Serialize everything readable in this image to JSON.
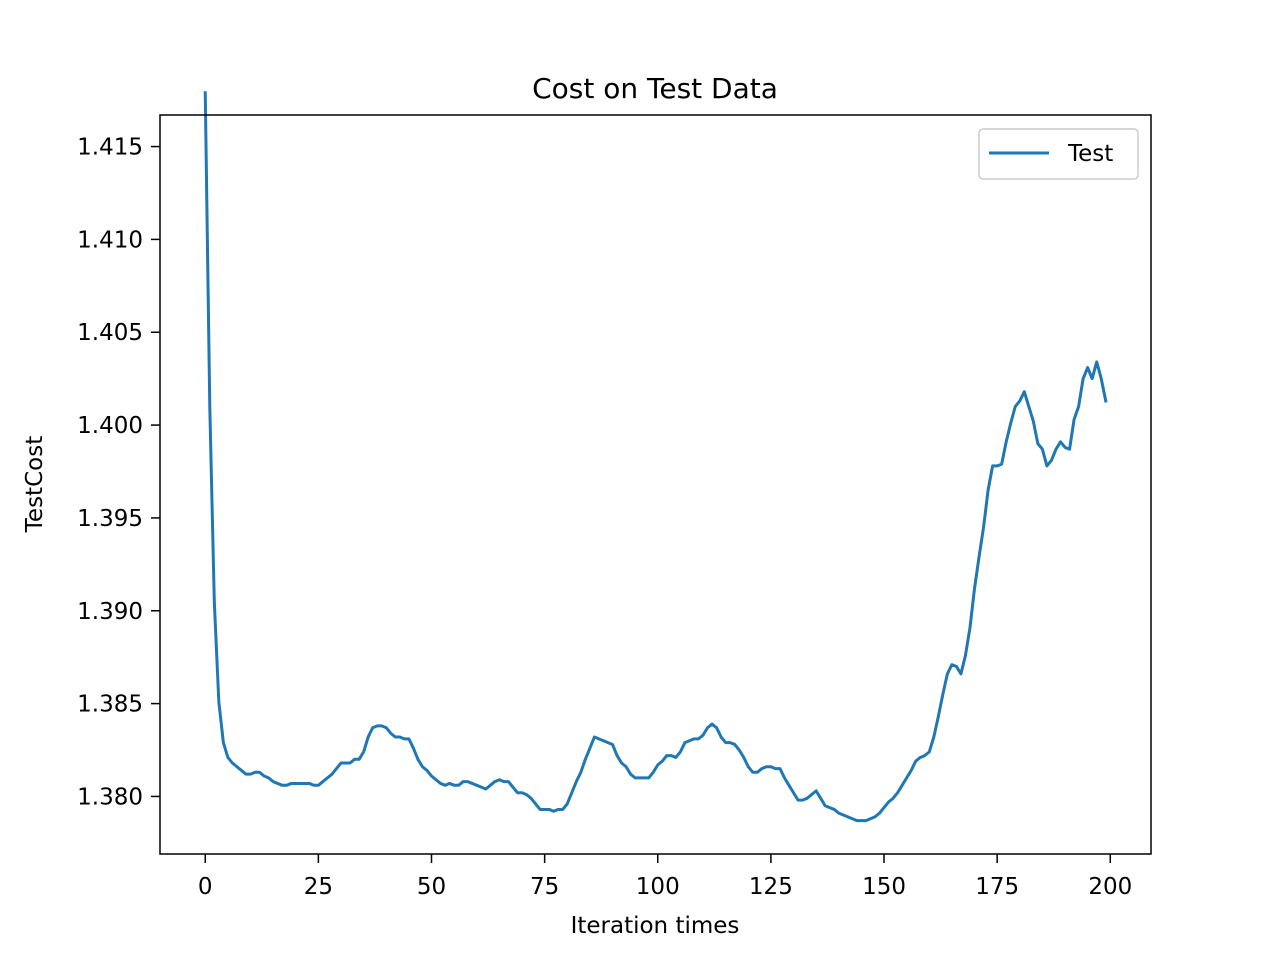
{
  "chart_data": {
    "type": "line",
    "title": "Cost on Test Data",
    "xlabel": "Iteration times",
    "ylabel": "TestCost",
    "xlim": [
      -10,
      209
    ],
    "ylim": [
      1.3769,
      1.4167
    ],
    "xticks": [
      0,
      25,
      50,
      75,
      100,
      125,
      150,
      175,
      200
    ],
    "xtick_labels": [
      "0",
      "25",
      "50",
      "75",
      "100",
      "125",
      "150",
      "175",
      "200"
    ],
    "yticks": [
      1.38,
      1.385,
      1.39,
      1.395,
      1.4,
      1.405,
      1.41,
      1.415
    ],
    "ytick_labels": [
      "1.380",
      "1.385",
      "1.390",
      "1.395",
      "1.400",
      "1.405",
      "1.410",
      "1.415"
    ],
    "grid": false,
    "legend_position": "top-right",
    "colors": {
      "series": "#1f77b4",
      "axes": "#000000",
      "background": "#ffffff"
    },
    "series": [
      {
        "name": "Test",
        "x": [
          0,
          1,
          2,
          3,
          4,
          5,
          6,
          7,
          8,
          9,
          10,
          11,
          12,
          13,
          14,
          15,
          16,
          17,
          18,
          19,
          20,
          21,
          22,
          23,
          24,
          25,
          26,
          27,
          28,
          29,
          30,
          31,
          32,
          33,
          34,
          35,
          36,
          37,
          38,
          39,
          40,
          41,
          42,
          43,
          44,
          45,
          46,
          47,
          48,
          49,
          50,
          51,
          52,
          53,
          54,
          55,
          56,
          57,
          58,
          59,
          60,
          61,
          62,
          63,
          64,
          65,
          66,
          67,
          68,
          69,
          70,
          71,
          72,
          73,
          74,
          75,
          76,
          77,
          78,
          79,
          80,
          81,
          82,
          83,
          84,
          85,
          86,
          87,
          88,
          89,
          90,
          91,
          92,
          93,
          94,
          95,
          96,
          97,
          98,
          99,
          100,
          101,
          102,
          103,
          104,
          105,
          106,
          107,
          108,
          109,
          110,
          111,
          112,
          113,
          114,
          115,
          116,
          117,
          118,
          119,
          120,
          121,
          122,
          123,
          124,
          125,
          126,
          127,
          128,
          129,
          130,
          131,
          132,
          133,
          134,
          135,
          136,
          137,
          138,
          139,
          140,
          141,
          142,
          143,
          144,
          145,
          146,
          147,
          148,
          149,
          150,
          151,
          152,
          153,
          154,
          155,
          156,
          157,
          158,
          159,
          160,
          161,
          162,
          163,
          164,
          165,
          166,
          167,
          168,
          169,
          170,
          171,
          172,
          173,
          174,
          175,
          176,
          177,
          178,
          179,
          180,
          181,
          182,
          183,
          184,
          185,
          186,
          187,
          188,
          189,
          190,
          191,
          192,
          193,
          194,
          195,
          196,
          197,
          198,
          199
        ],
        "y": [
          1.4179,
          1.401,
          1.3905,
          1.3851,
          1.3829,
          1.3821,
          1.3818,
          1.3816,
          1.3814,
          1.3812,
          1.3812,
          1.3813,
          1.3813,
          1.3811,
          1.381,
          1.3808,
          1.3807,
          1.3806,
          1.3806,
          1.3807,
          1.3807,
          1.3807,
          1.3807,
          1.3807,
          1.3806,
          1.3806,
          1.3808,
          1.381,
          1.3812,
          1.3815,
          1.3818,
          1.3818,
          1.3818,
          1.382,
          1.382,
          1.3824,
          1.3832,
          1.3837,
          1.3838,
          1.3838,
          1.3837,
          1.3834,
          1.3832,
          1.3832,
          1.3831,
          1.3831,
          1.3826,
          1.382,
          1.3816,
          1.3814,
          1.3811,
          1.3809,
          1.3807,
          1.3806,
          1.3807,
          1.3806,
          1.3806,
          1.3808,
          1.3808,
          1.3807,
          1.3806,
          1.3805,
          1.3804,
          1.3806,
          1.3808,
          1.3809,
          1.3808,
          1.3808,
          1.3805,
          1.3802,
          1.3802,
          1.3801,
          1.3799,
          1.3796,
          1.3793,
          1.3793,
          1.3793,
          1.3792,
          1.3793,
          1.3793,
          1.3796,
          1.3802,
          1.3808,
          1.3813,
          1.382,
          1.3826,
          1.3832,
          1.3831,
          1.383,
          1.3829,
          1.3828,
          1.3822,
          1.3818,
          1.3816,
          1.3812,
          1.381,
          1.381,
          1.381,
          1.381,
          1.3813,
          1.3817,
          1.3819,
          1.3822,
          1.3822,
          1.3821,
          1.3824,
          1.3829,
          1.383,
          1.3831,
          1.3831,
          1.3833,
          1.3837,
          1.3839,
          1.3837,
          1.3832,
          1.3829,
          1.3829,
          1.3828,
          1.3825,
          1.3821,
          1.3816,
          1.3813,
          1.3813,
          1.3815,
          1.3816,
          1.3816,
          1.3815,
          1.3815,
          1.381,
          1.3806,
          1.3802,
          1.3798,
          1.3798,
          1.3799,
          1.3801,
          1.3803,
          1.3799,
          1.3795,
          1.3794,
          1.3793,
          1.3791,
          1.379,
          1.3789,
          1.3788,
          1.3787,
          1.3787,
          1.3787,
          1.3788,
          1.3789,
          1.3791,
          1.3794,
          1.3797,
          1.3799,
          1.3802,
          1.3806,
          1.381,
          1.3814,
          1.3819,
          1.3821,
          1.3822,
          1.3824,
          1.3832,
          1.3843,
          1.3855,
          1.3866,
          1.3871,
          1.387,
          1.3866,
          1.3876,
          1.3891,
          1.3912,
          1.3929,
          1.3945,
          1.3965,
          1.3978,
          1.3978,
          1.3979,
          1.3991,
          1.4001,
          1.401,
          1.4013,
          1.4018,
          1.401,
          1.4002,
          1.399,
          1.3987,
          1.3978,
          1.3981,
          1.3987,
          1.3991,
          1.3988,
          1.3987,
          1.4003,
          1.401,
          1.4025,
          1.4031,
          1.4025,
          1.4034,
          1.4025,
          1.4013
        ]
      }
    ]
  }
}
